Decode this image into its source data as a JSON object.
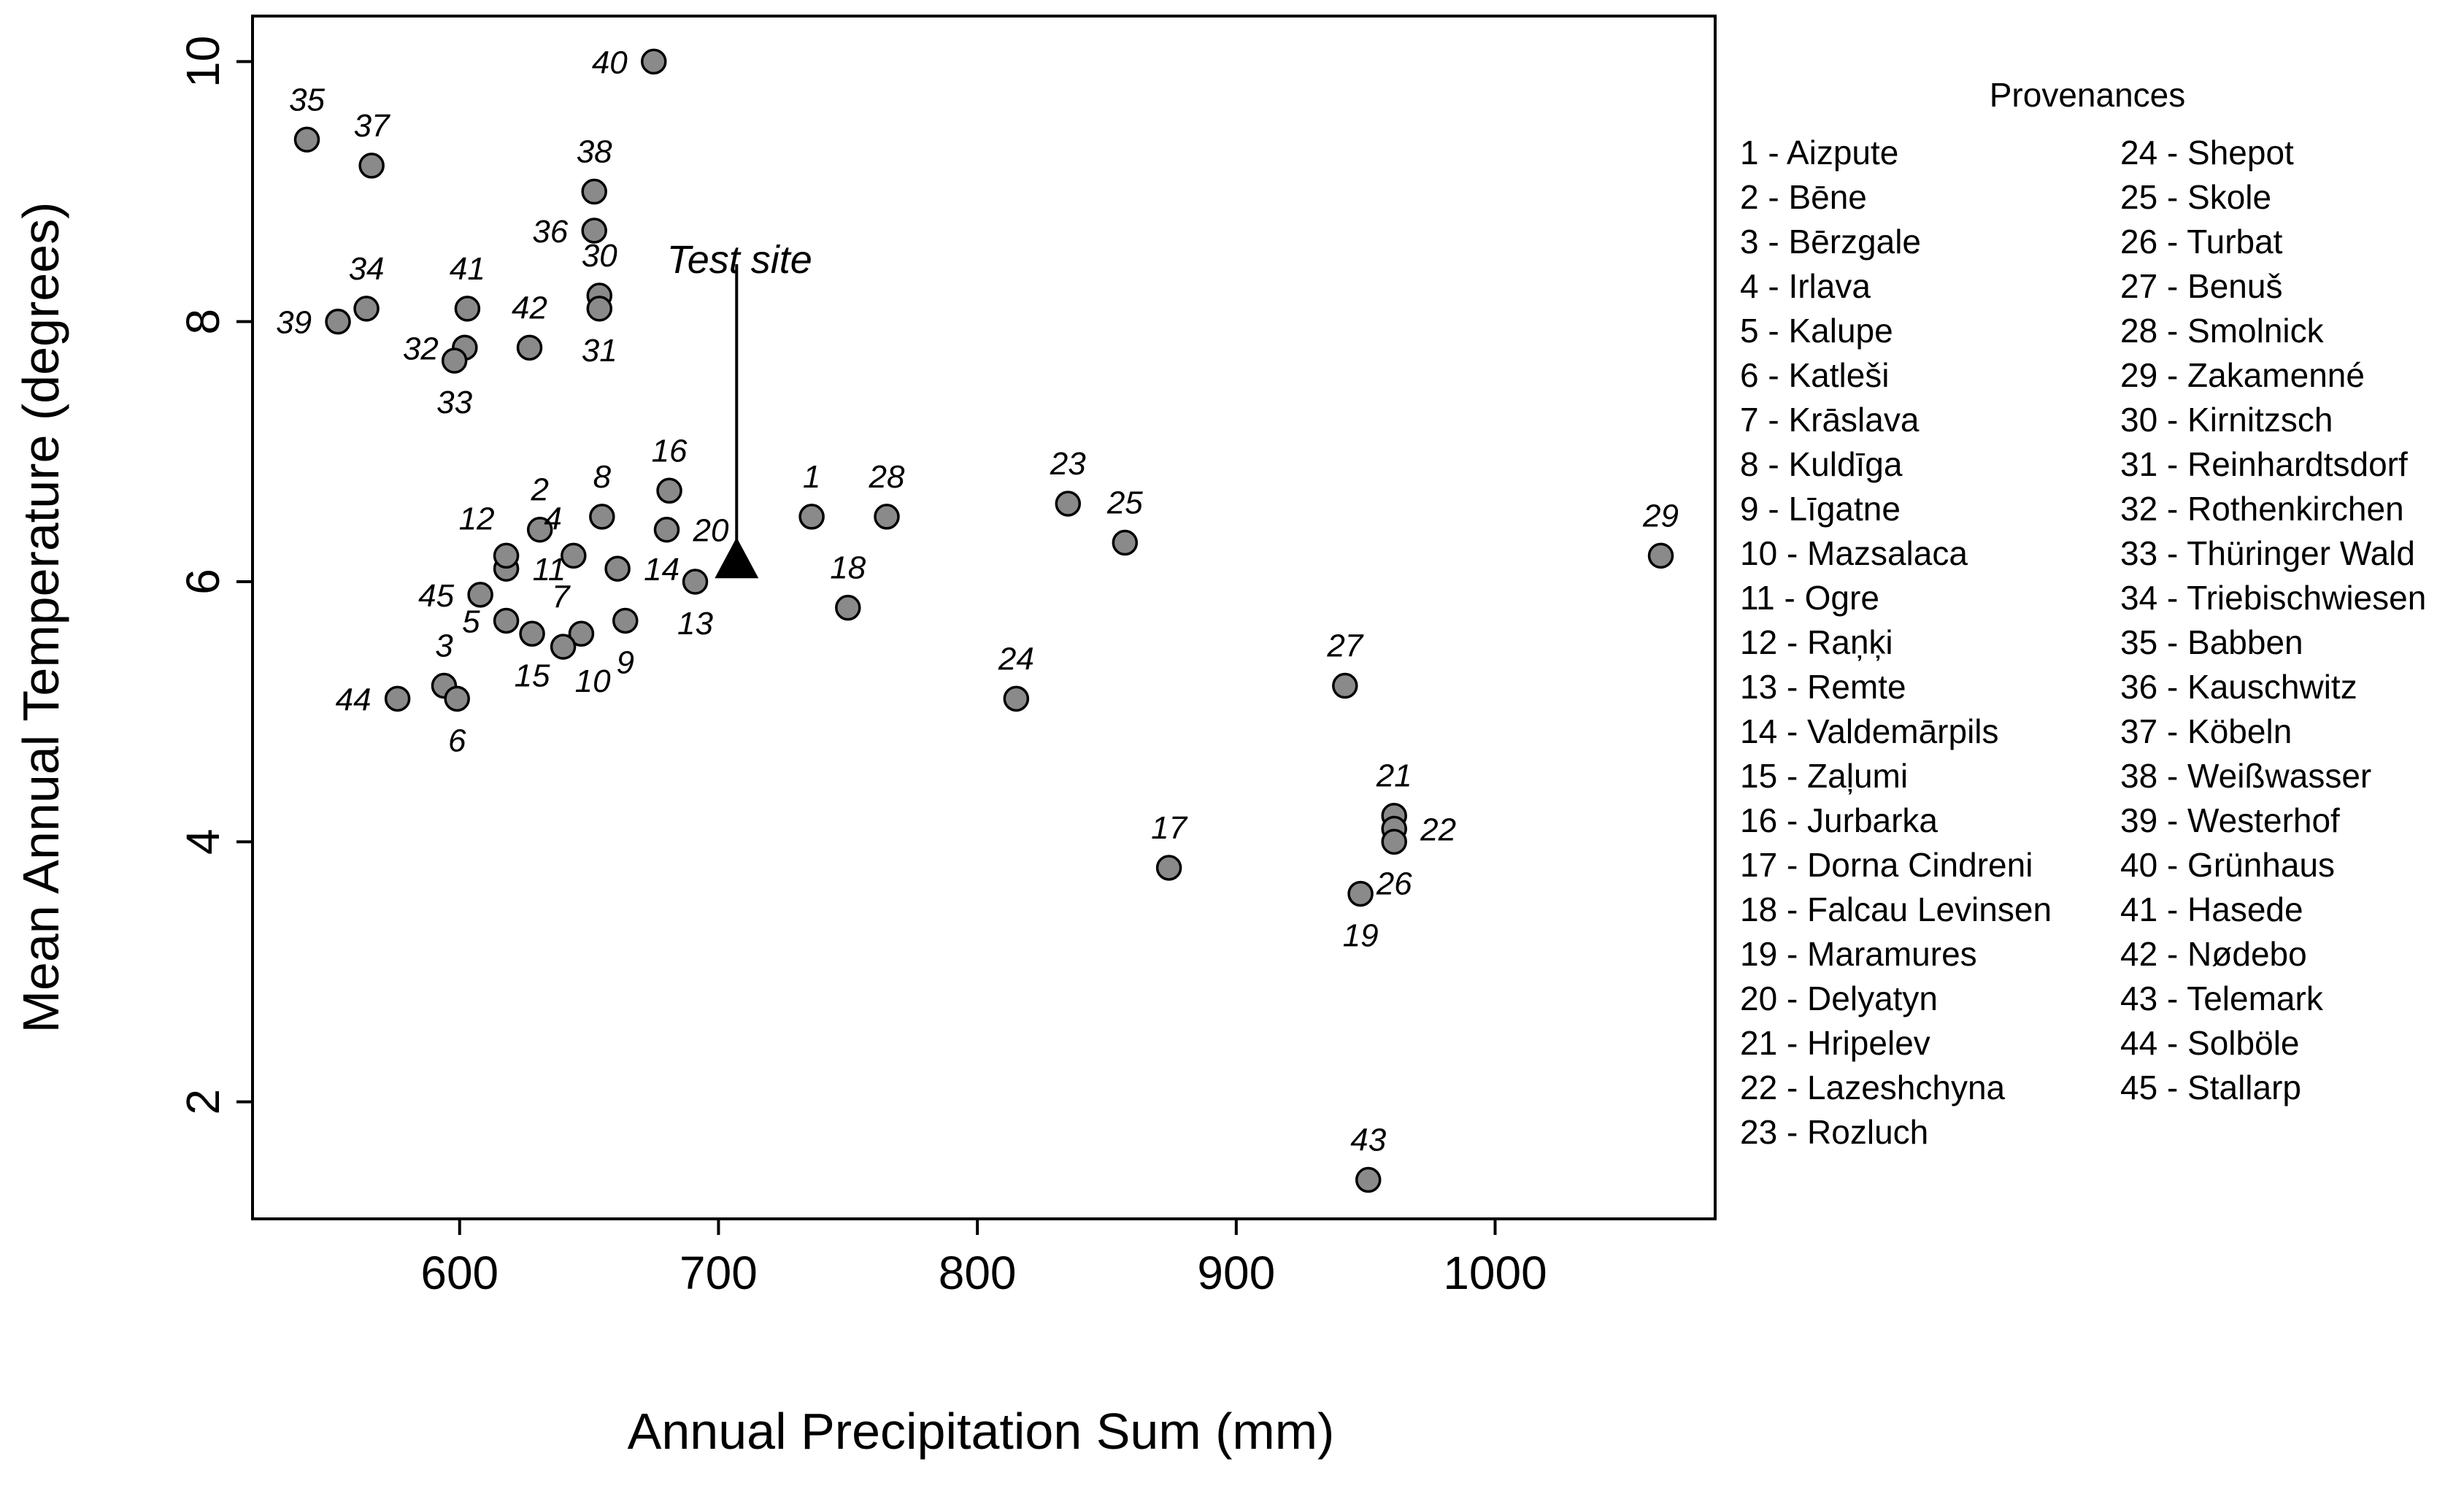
{
  "chart_data": {
    "type": "scatter",
    "title": "",
    "xlabel": "Annual Precipitation Sum (mm)",
    "ylabel": "Mean Annual Temperature (degrees)",
    "xlim": [
      520,
      1085
    ],
    "ylim": [
      1.1,
      10.35
    ],
    "xticks": [
      600,
      700,
      800,
      900,
      1000
    ],
    "yticks": [
      2,
      4,
      6,
      8,
      10
    ],
    "grid": false,
    "legend": {
      "title": "Provenances",
      "position": "right",
      "entries": [
        "1 - Aizpute",
        "2 - Bēne",
        "3 - Bērzgale",
        "4 - Irlava",
        "5 - Kalupe",
        "6 - Katleši",
        "7 - Krāslava",
        "8 - Kuldīga",
        "9 - Līgatne",
        "10 - Mazsalaca",
        "11 - Ogre",
        "12 - Raņķi",
        "13 - Remte",
        "14 - Valdemārpils",
        "15 - Zaļumi",
        "16 - Jurbarka",
        "17 - Dorna Cindreni",
        "18 - Falcau Levinsen",
        "19 - Maramures",
        "20 - Delyatyn",
        "21 - Hripelev",
        "22 - Lazeshchyna",
        "23 - Rozluch",
        "24 - Shepot",
        "25 - Skole",
        "26 - Turbat",
        "27 - Benuš",
        "28 - Smolnick",
        "29 - Zakamenné",
        "30 - Kirnitzsch",
        "31 - Reinhardtsdorf",
        "32 - Rothenkirchen",
        "33 - Thüringer Wald",
        "34 - Triebischwiesen",
        "35 - Babben",
        "36 - Kauschwitz",
        "37 - Köbeln",
        "38 - Weißwasser",
        "39 - Westerhof",
        "40 - Grünhaus",
        "41 - Hasede",
        "42 - Nødebo",
        "43 - Telemark",
        "44 - Solböle",
        "45 - Stallarp"
      ]
    },
    "test_site": {
      "label": "Test site",
      "x": 707,
      "y": 6.15
    },
    "points": [
      {
        "id": "1",
        "x": 736,
        "y": 6.5,
        "pos": "above"
      },
      {
        "id": "2",
        "x": 631,
        "y": 6.4,
        "pos": "above"
      },
      {
        "id": "3",
        "x": 594,
        "y": 5.2,
        "pos": "above"
      },
      {
        "id": "4",
        "x": 644,
        "y": 6.2,
        "pos": "upleft"
      },
      {
        "id": "5",
        "x": 618,
        "y": 5.7,
        "pos": "left"
      },
      {
        "id": "6",
        "x": 599,
        "y": 5.1,
        "pos": "below"
      },
      {
        "id": "7",
        "x": 647,
        "y": 5.6,
        "pos": "upleft"
      },
      {
        "id": "8",
        "x": 655,
        "y": 6.5,
        "pos": "above"
      },
      {
        "id": "9",
        "x": 664,
        "y": 5.7,
        "pos": "below"
      },
      {
        "id": "10",
        "x": 640,
        "y": 5.5,
        "pos": "belowright"
      },
      {
        "id": "11",
        "x": 618,
        "y": 6.1,
        "pos": "right"
      },
      {
        "id": "12",
        "x": 618,
        "y": 6.2,
        "pos": "upleft"
      },
      {
        "id": "13",
        "x": 691,
        "y": 6.0,
        "pos": "below"
      },
      {
        "id": "14",
        "x": 661,
        "y": 6.1,
        "pos": "right"
      },
      {
        "id": "15",
        "x": 628,
        "y": 5.6,
        "pos": "below"
      },
      {
        "id": "16",
        "x": 681,
        "y": 6.7,
        "pos": "above"
      },
      {
        "id": "17",
        "x": 874,
        "y": 3.8,
        "pos": "above"
      },
      {
        "id": "18",
        "x": 750,
        "y": 5.8,
        "pos": "above"
      },
      {
        "id": "19",
        "x": 948,
        "y": 3.6,
        "pos": "below"
      },
      {
        "id": "20",
        "x": 680,
        "y": 6.4,
        "pos": "right"
      },
      {
        "id": "21",
        "x": 961,
        "y": 4.2,
        "pos": "above"
      },
      {
        "id": "22",
        "x": 961,
        "y": 4.1,
        "pos": "right"
      },
      {
        "id": "23",
        "x": 835,
        "y": 6.6,
        "pos": "above"
      },
      {
        "id": "24",
        "x": 815,
        "y": 5.1,
        "pos": "above"
      },
      {
        "id": "25",
        "x": 857,
        "y": 6.3,
        "pos": "above"
      },
      {
        "id": "26",
        "x": 961,
        "y": 4.0,
        "pos": "below"
      },
      {
        "id": "27",
        "x": 942,
        "y": 5.2,
        "pos": "above"
      },
      {
        "id": "28",
        "x": 765,
        "y": 6.5,
        "pos": "above"
      },
      {
        "id": "29",
        "x": 1064,
        "y": 6.2,
        "pos": "above"
      },
      {
        "id": "30",
        "x": 654,
        "y": 8.2,
        "pos": "above"
      },
      {
        "id": "31",
        "x": 654,
        "y": 8.1,
        "pos": "below"
      },
      {
        "id": "32",
        "x": 602,
        "y": 7.8,
        "pos": "left"
      },
      {
        "id": "33",
        "x": 598,
        "y": 7.7,
        "pos": "below"
      },
      {
        "id": "34",
        "x": 564,
        "y": 8.1,
        "pos": "above"
      },
      {
        "id": "35",
        "x": 541,
        "y": 9.4,
        "pos": "above"
      },
      {
        "id": "36",
        "x": 652,
        "y": 8.7,
        "pos": "left"
      },
      {
        "id": "37",
        "x": 566,
        "y": 9.2,
        "pos": "above"
      },
      {
        "id": "38",
        "x": 652,
        "y": 9.0,
        "pos": "above"
      },
      {
        "id": "39",
        "x": 553,
        "y": 8.0,
        "pos": "left"
      },
      {
        "id": "40",
        "x": 675,
        "y": 10.0,
        "pos": "left"
      },
      {
        "id": "41",
        "x": 603,
        "y": 8.1,
        "pos": "above"
      },
      {
        "id": "42",
        "x": 627,
        "y": 7.8,
        "pos": "above"
      },
      {
        "id": "43",
        "x": 951,
        "y": 1.4,
        "pos": "above"
      },
      {
        "id": "44",
        "x": 576,
        "y": 5.1,
        "pos": "left"
      },
      {
        "id": "45",
        "x": 608,
        "y": 5.9,
        "pos": "left"
      }
    ]
  }
}
